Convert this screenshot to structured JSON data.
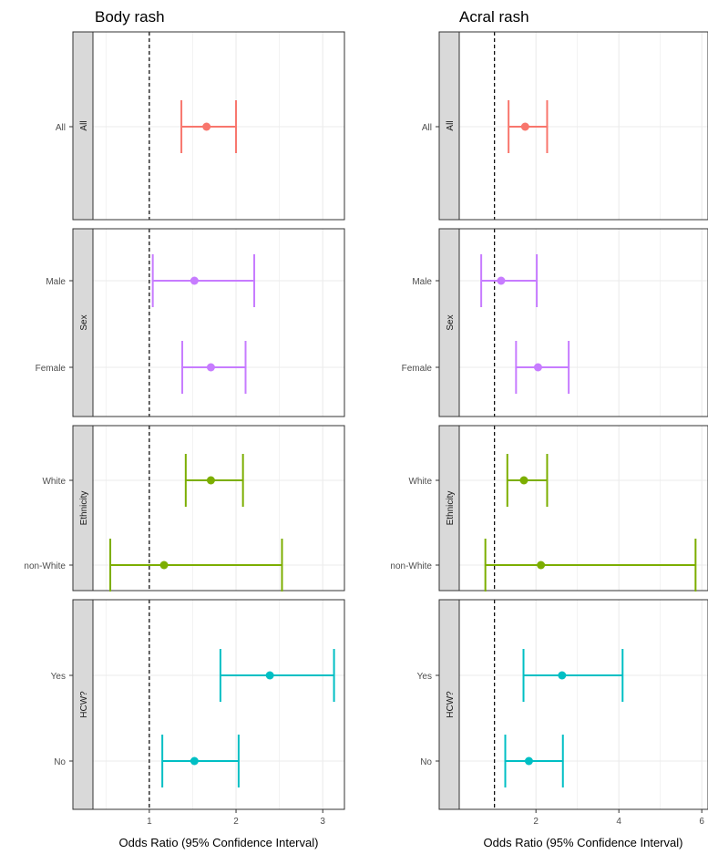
{
  "colors": {
    "All": "#F8766D",
    "Sex": "#C77CFF",
    "Ethnicity": "#7CAE00",
    "HCW?": "#00BFC4",
    "strip_bg": "#D9D9D9",
    "grid": "#EBEBEB",
    "panel_border": "#333333",
    "text": "#4D4D4D"
  },
  "chart_data": [
    {
      "type": "forest",
      "title": "Body rash",
      "xlabel": "Odds Ratio (95% Confidence Interval)",
      "xlim": [
        0.35,
        3.25
      ],
      "xticks": [
        1,
        2,
        3
      ],
      "reference_line": 1,
      "facets": [
        {
          "strip": "All",
          "rows": [
            {
              "label": "All",
              "or": 1.66,
              "lower": 1.37,
              "upper": 2.0
            }
          ]
        },
        {
          "strip": "Sex",
          "rows": [
            {
              "label": "Male",
              "or": 1.52,
              "lower": 1.04,
              "upper": 2.21
            },
            {
              "label": "Female",
              "or": 1.71,
              "lower": 1.38,
              "upper": 2.11
            }
          ]
        },
        {
          "strip": "Ethnicity",
          "rows": [
            {
              "label": "White",
              "or": 1.71,
              "lower": 1.42,
              "upper": 2.08
            },
            {
              "label": "non-White",
              "or": 1.17,
              "lower": 0.55,
              "upper": 2.53
            }
          ]
        },
        {
          "strip": "HCW?",
          "rows": [
            {
              "label": "Yes",
              "or": 2.39,
              "lower": 1.82,
              "upper": 3.13
            },
            {
              "label": "No",
              "or": 1.52,
              "lower": 1.15,
              "upper": 2.03
            }
          ]
        }
      ]
    },
    {
      "type": "forest",
      "title": "Acral rash",
      "xlabel": "Odds Ratio (95% Confidence Interval)",
      "xlim": [
        0.15,
        6.15
      ],
      "xticks": [
        2,
        4,
        6
      ],
      "reference_line": 1,
      "facets": [
        {
          "strip": "All",
          "rows": [
            {
              "label": "All",
              "or": 1.74,
              "lower": 1.34,
              "upper": 2.27
            }
          ]
        },
        {
          "strip": "Sex",
          "rows": [
            {
              "label": "Male",
              "or": 1.16,
              "lower": 0.68,
              "upper": 2.02
            },
            {
              "label": "Female",
              "or": 2.05,
              "lower": 1.52,
              "upper": 2.79
            }
          ]
        },
        {
          "strip": "Ethnicity",
          "rows": [
            {
              "label": "White",
              "or": 1.71,
              "lower": 1.31,
              "upper": 2.27
            },
            {
              "label": "non-White",
              "or": 2.12,
              "lower": 0.78,
              "upper": 5.85
            }
          ]
        },
        {
          "strip": "HCW?",
          "rows": [
            {
              "label": "Yes",
              "or": 2.63,
              "lower": 1.7,
              "upper": 4.09
            },
            {
              "label": "No",
              "or": 1.83,
              "lower": 1.26,
              "upper": 2.65
            }
          ]
        }
      ]
    }
  ]
}
